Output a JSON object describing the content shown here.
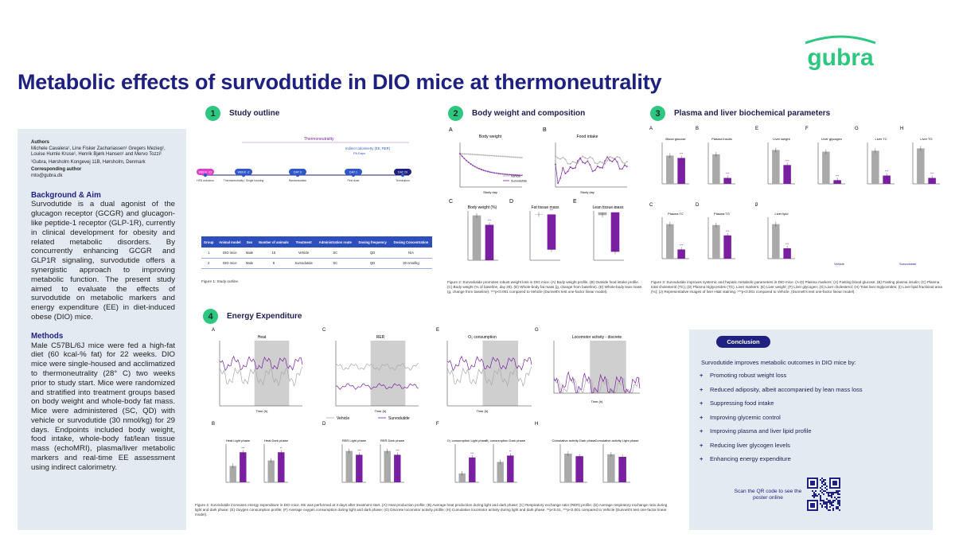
{
  "brand": {
    "name": "gubra",
    "color": "#2ec780"
  },
  "title": "Metabolic effects of survodutide in DIO mice at thermoneutrality",
  "colors": {
    "vehicle": "#a9a9a9",
    "survodutide": "#7b1fa2",
    "navy": "#1f2180",
    "green": "#2ec780",
    "panel_bg": "#e4eaf2"
  },
  "sidebar": {
    "authors_heading": "Authors",
    "authors": "Michele Cavalera¹, Line Fisker Zachariassen¹ Gregers Mezieg¹, Louise Humle Kruse¹, Henrik Bjørk Hansen¹ and Mervo Tozzi¹",
    "affiliation": "¹Gubra, Hørsholm Kongevej 11B, Hørsholm, Denmark",
    "corresponding_heading": "Corresponding author",
    "corresponding": "mto@gubra.dk",
    "background_heading": "Background & Aim",
    "background": "Survodutide is a dual agonist of the glucagon receptor (GCGR) and glucagon-like peptide-1 receptor (GLP-1R), currently in clinical development for obesity and related metabolic disorders. By concurrently enhancing GCGR and GLP1R signaling, survodutide offers a synergistic approach to improving metabolic function. The present study aimed to evaluate the effects of survodutide on metabolic markers and energy expenditure (EE) in diet-induced obese (DIO) mice.",
    "methods_heading": "Methods",
    "methods": "Male C57BL/6J mice were fed a high-fat diet (60 kcal-% fat) for 22 weeks. DIO mice were single-housed and acclimatized to thermoneutrality (28° C) two weeks prior to study start. Mice were randomized and stratified into treatment groups based on body weight and whole-body fat mass. Mice were administered (SC, QD) with vehicle or survodutide (30 nmol/kg) for 29 days. Endpoints included body weight, food intake, whole-body fat/lean tissue mass (echoMRI), plasma/liver metabolic markers and real-time EE assessment using indirect calorimetry."
  },
  "sections": {
    "s1": {
      "num": "1",
      "title": "Study outline"
    },
    "s2": {
      "num": "2",
      "title": "Body weight and composition"
    },
    "s3": {
      "num": "3",
      "title": "Plasma and liver biochemical parameters"
    },
    "s4": {
      "num": "4",
      "title": "Energy Expenditure"
    }
  },
  "study": {
    "timeline_title": "Thermoneutrality",
    "indirect_label": "Indirect calorimetry (EE, RER)",
    "indirect_sub": "PA Days",
    "nodes": [
      {
        "label": "WEEK -22",
        "sub": "HFD induction"
      },
      {
        "label": "WEEK -2",
        "sub": "Thermoneutrality / Single housing"
      },
      {
        "label": "DAY 0",
        "sub": "Randomization"
      },
      {
        "label": "DAY 1",
        "sub": "First dose"
      },
      {
        "label": "DAY 29",
        "sub": "Termination"
      }
    ],
    "headers": [
      "Group",
      "Animal model",
      "Sex",
      "Number of animals",
      "Treatment",
      "Administration route",
      "Dosing frequency",
      "Dosing Concentration"
    ],
    "rows": [
      [
        "1",
        "DIO mice",
        "Male",
        "10",
        "Vehicle",
        "SC",
        "QD",
        "N/A"
      ],
      [
        "2",
        "DIO mice",
        "Male",
        "8",
        "Survodutide",
        "SC",
        "QD",
        "30 nmol/kg"
      ]
    ],
    "caption": "Figure 1: Study outline."
  },
  "body": {
    "A_title": "Body weight",
    "B_title": "Food intake",
    "C_title": "Body weight (%)",
    "D_title": "Fat tissue mass",
    "E_title": "Lean tissue mass",
    "A_xlabel": "Study day",
    "B_xlabel": "Study day",
    "legend": [
      "Vehicle",
      "Survodutide"
    ],
    "caption": "Figure 2: Survodutide promotes robust weight loss in DIO mice. (A) Body weight profile. (B) Outside food intake profile. (C) Body weight (% of baseline, day 29). (D) Whole-body fat mass (g, change from baseline). (E) Whole-body lean mass (g, change from baseline). ***p<0.001 compared to Vehicle (Dunnett's test one-factor linear model)."
  },
  "plasma": {
    "panels": [
      "Blood glucose",
      "Plasma insulin",
      "Liver weight",
      "Liver glycogen",
      "Liver TC",
      "Liver TG",
      "Plasma TC",
      "Plasma TG",
      "Liver lipid"
    ],
    "image_labels": [
      "Vehicle",
      "Survodutide"
    ],
    "caption": "Figure 3: Survodutide improves systemic and hepatic metabolic parameters in DIO mice. (A-D) Plasma markers: (A) Fasting blood glucose; (B) Fasting plasma insulin; (C) Plasma total cholesterol (TC); (D) Plasma triglycerides (TG). Liver markers: (E) Liver weight; (F) Liver glycogen; (G) Liver cholesterol; (H) Total liver triglycerides; (I) Liver lipid fractional area (%); (J) Representative images of liver H&E staining. ***p<0.001 compared to Vehicle. (Dunnett's test one-factor linear model)."
  },
  "energy": {
    "A_title": "Heat",
    "C_title": "RER",
    "E_title": "O₂ consumption",
    "G_title": "Locomotor activity - discrete",
    "xlabel": "Time (h)",
    "legend": [
      "Vehicle",
      "Survodutide"
    ],
    "bar_titles": [
      "Heat Light phase",
      "Heat Dark phase",
      "RER Light phase",
      "RER Dark phase",
      "O₂ consumption Light phase",
      "O₂ consumption Dark phase",
      "Cumulative activity Dark phase",
      "Cumulative activity Light phase"
    ],
    "caption": "Figure 4: Survodutide increases energy expenditure in DIO mice. EE was performed at 4 days after treatment start. (A) Heat production profile; (B) Average heat production during light and dark phase; (C) Respiratory exchange ratio (RER) profile; (D) Average respiratory exchange ratio during light and dark phase; (E) Oxygen consumption profile; (F) Average oxygen consumption during light and dark phase; (G) Discrete locomotor activity profile; (H) Cumulative locomotor activity during light and dark phase. **p<0.01, ***p<0.001 compared to Vehicle (Dunnett's test one-factor linear model)."
  },
  "conclusion": {
    "badge": "Conclusion",
    "intro": "Survodutide improves metabolic outcomes in DIO mice by:",
    "items": [
      "Promoting robust weight loss",
      "Reduced adiposity, albeit accompanied by lean mass loss",
      "Suppressing food intake",
      "Improving glycemic control",
      "Improving plasma and liver lipid profile",
      "Reducing liver glycogen levels",
      "Enhancing energy expenditure"
    ],
    "qr_text": "Scan the QR code to see the poster online"
  }
}
